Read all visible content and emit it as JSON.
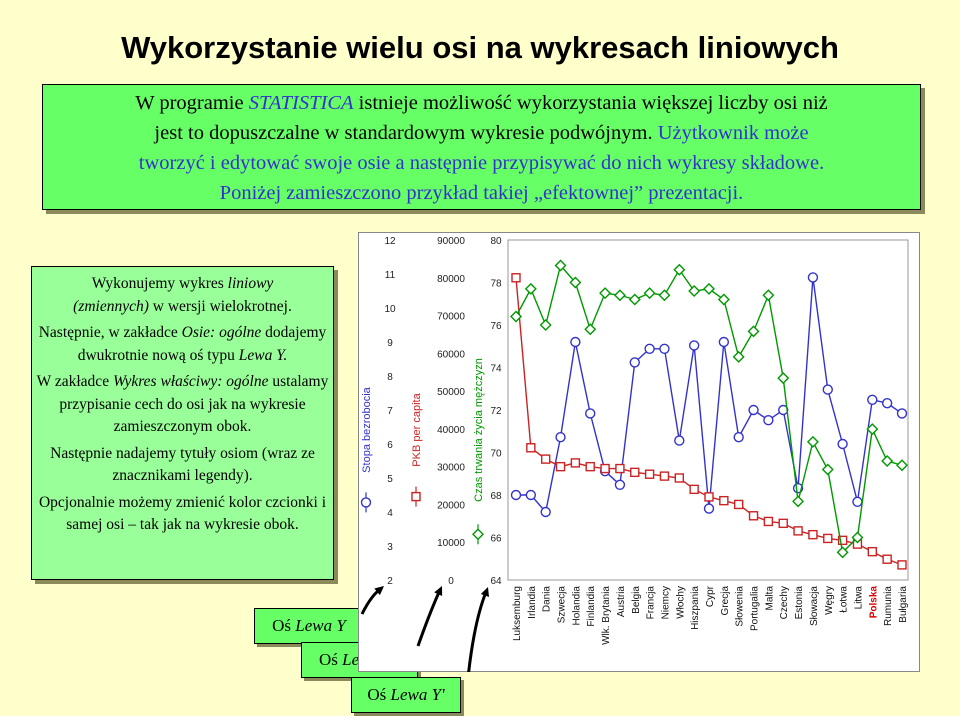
{
  "title": "Wykorzystanie wielu osi na wykresach liniowych",
  "intro": {
    "l1a": "W programie ",
    "l1b": "STATISTICA",
    "l1c": " istnieje możliwość wykorzystania większej liczby osi niż",
    "l2a": "jest to dopuszczalne w standardowym wykresie podwójnym. ",
    "l2b": "Użytkownik może",
    "l3": "tworzyć i edytować swoje osie a następnie przypisywać do nich wykresy składowe.",
    "l4": "Poniżej zamieszczono przykład takiej „efektownej” prezentacji."
  },
  "side": {
    "p1a": "Wykonujemy wykres ",
    "p1b": "liniowy",
    "p1c": "(zmiennych)",
    "p1d": " w wersji wielokrotnej.",
    "p2a": "Następnie, w zakładce ",
    "p2b": "Osie: ogólne",
    "p2c": " dodajemy dwukrotnie nową oś typu ",
    "p2d": "Lewa Y.",
    "p3a": "W zakładce ",
    "p3b": "Wykres właściwy: ogólne",
    "p3c": " ustalamy przypisanie cech do osi jak na wykresie zamieszczonym obok.",
    "p4": "Następnie nadajemy tytuły osiom (wraz ze znacznikami legendy).",
    "p5": "Opcjonalnie możemy zmienić kolor czcionki i samej osi – tak jak na wykresie obok."
  },
  "axis_labels": {
    "y_a": "Oś ",
    "y_b": "Lewa Y",
    "y2_a": "Oś ",
    "y2_b": "Lewa Y''",
    "y1_a": "Oś ",
    "y1_b": "Lewa Y'"
  },
  "colors": {
    "unemployment": "#3333CC",
    "gdp": "#CC2222",
    "life": "#009900"
  },
  "chart_data": {
    "type": "line",
    "categories": [
      "Luksemburg",
      "Irlandia",
      "Dania",
      "Szwecja",
      "Holandia",
      "Finlandia",
      "Wlk. Brytania",
      "Austria",
      "Belgia",
      "Francja",
      "Niemcy",
      "Włochy",
      "Hiszpania",
      "Cypr",
      "Grecja",
      "Słowenia",
      "Portugalia",
      "Malta",
      "Czechy",
      "Estonia",
      "Słowacja",
      "Węgry",
      "Łotwa",
      "Litwa",
      "Polska",
      "Rumunia",
      "Bułgaria"
    ],
    "axes": {
      "unemployment": {
        "title": "Stopa bezrobocia",
        "ticks": [
          "2",
          "3",
          "4",
          "5",
          "6",
          "7",
          "8",
          "9",
          "10",
          "11",
          "12"
        ],
        "range": [
          2,
          12
        ]
      },
      "gdp": {
        "title": "PKB per capita",
        "ticks": [
          "0",
          "10000",
          "20000",
          "30000",
          "40000",
          "50000",
          "60000",
          "70000",
          "80000",
          "90000"
        ],
        "range": [
          0,
          90000
        ]
      },
      "life": {
        "title": "Czas trwania życia mężczyzn",
        "ticks": [
          "64",
          "66",
          "68",
          "70",
          "72",
          "74",
          "76",
          "78",
          "80"
        ],
        "range": [
          64,
          80
        ]
      }
    },
    "series": [
      {
        "name": "Stopa bezrobocia",
        "key": "unemployment",
        "values": [
          4.5,
          4.5,
          4.0,
          6.2,
          9.0,
          6.9,
          5.2,
          4.8,
          8.4,
          8.8,
          8.8,
          6.1,
          8.9,
          4.1,
          9.0,
          6.2,
          7.0,
          6.7,
          7.0,
          4.7,
          10.9,
          7.6,
          6.0,
          4.3,
          7.3,
          7.2,
          6.9
        ]
      },
      {
        "name": "PKB per capita",
        "key": "gdp",
        "values": [
          80000,
          35000,
          32000,
          30000,
          31000,
          30000,
          29500,
          29500,
          28500,
          28000,
          27500,
          27000,
          24000,
          22000,
          21000,
          20000,
          17000,
          15500,
          15000,
          13000,
          12000,
          11000,
          10500,
          9500,
          7500,
          5500,
          4000
        ]
      },
      {
        "name": "Czas trwania życia mężczyzn",
        "key": "life",
        "values": [
          76.4,
          77.7,
          76.0,
          78.8,
          78.0,
          75.8,
          77.5,
          77.4,
          77.2,
          77.5,
          77.4,
          78.6,
          77.6,
          77.7,
          77.2,
          74.5,
          75.7,
          77.4,
          73.5,
          67.7,
          70.5,
          69.2,
          65.3,
          66.0,
          71.1,
          69.6,
          69.4
        ]
      }
    ]
  }
}
